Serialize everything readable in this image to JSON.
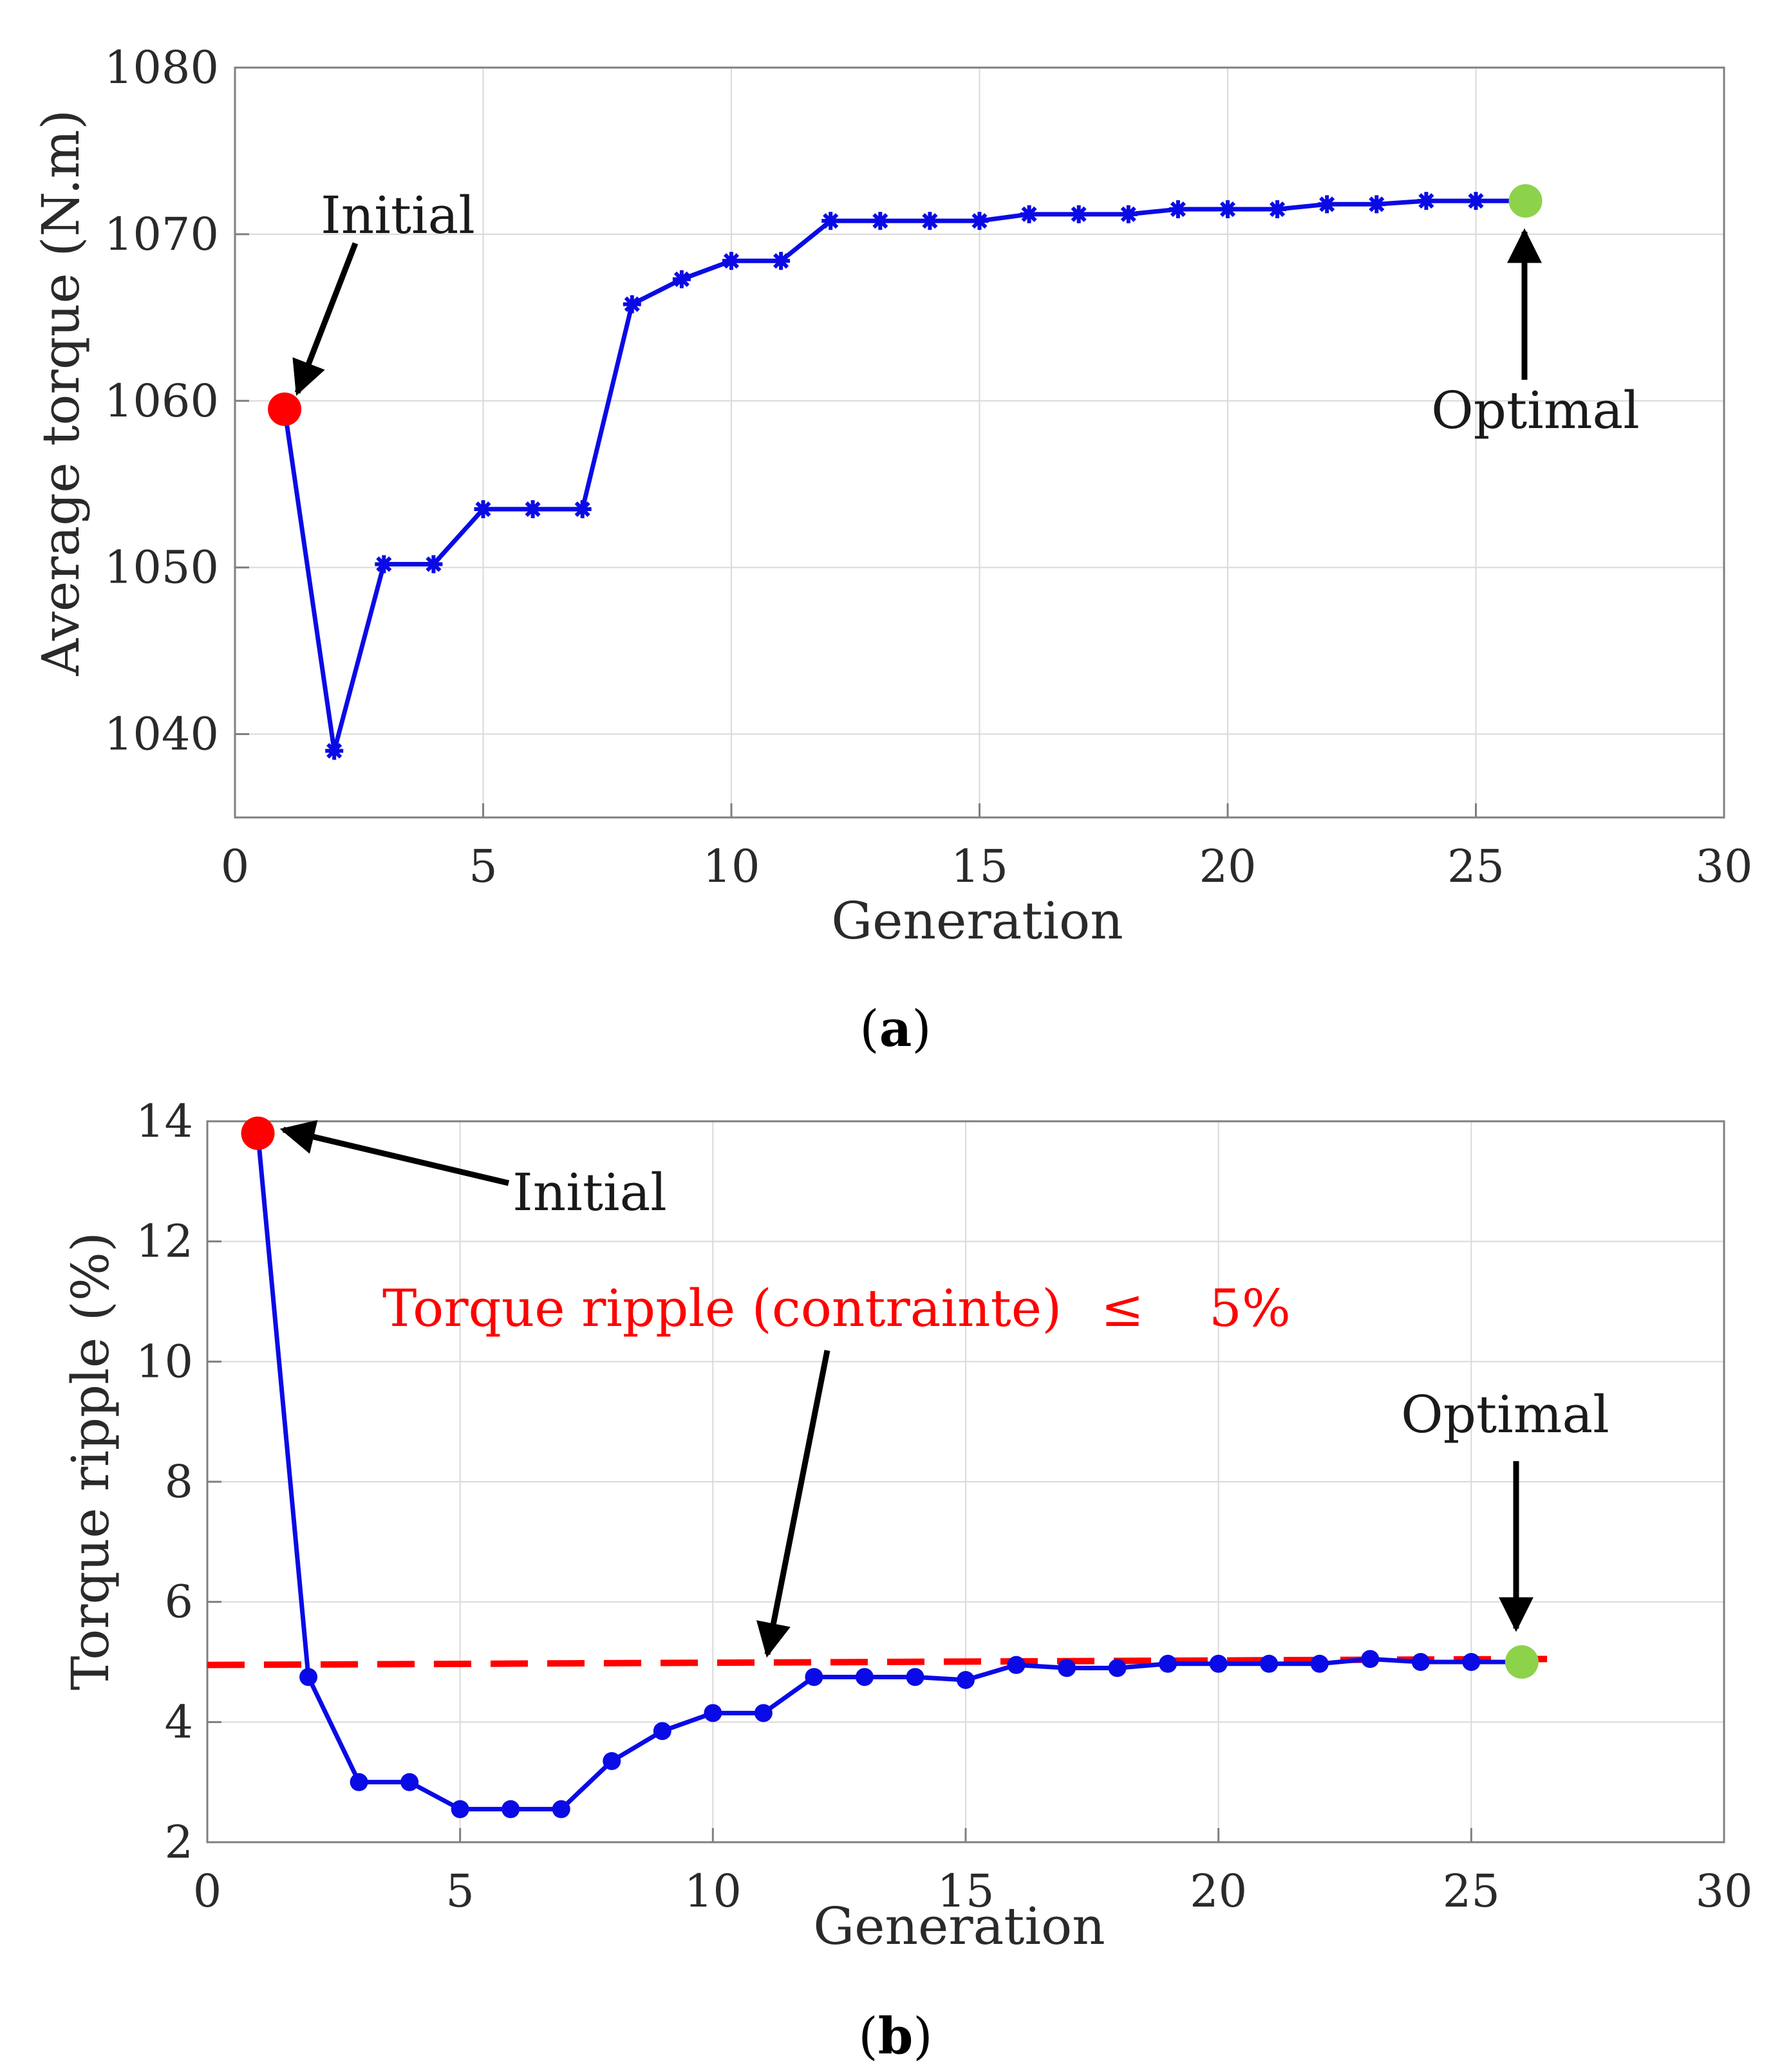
{
  "colors": {
    "series": "#0a0ae6",
    "initial_marker": "#ff0000",
    "optimal_marker": "#8cd24b",
    "constraint": "#ff0000",
    "annotation_arrow": "#000000",
    "grid": "#d9d9d9",
    "axes": "#7f7f7f"
  },
  "chart_data": [
    {
      "type": "line",
      "panel_label": "a",
      "caption_open": "(",
      "caption_close": ")",
      "xlabel": "Generation",
      "ylabel": "Average torque (N.m)",
      "xlim": [
        0,
        30
      ],
      "ylim": [
        1035,
        1080
      ],
      "xticks": [
        0,
        5,
        10,
        15,
        20,
        25,
        30
      ],
      "yticks": [
        1040,
        1050,
        1060,
        1070,
        1080
      ],
      "grid": true,
      "series": [
        {
          "name": "Average torque",
          "marker": "asterisk",
          "x": [
            1,
            2,
            3,
            4,
            5,
            6,
            7,
            8,
            9,
            10,
            11,
            12,
            13,
            14,
            15,
            16,
            17,
            18,
            19,
            20,
            21,
            22,
            23,
            24,
            25,
            26
          ],
          "values": [
            1059.5,
            1039,
            1050.2,
            1050.2,
            1053.5,
            1053.5,
            1053.5,
            1065.8,
            1067.3,
            1068.4,
            1068.4,
            1070.8,
            1070.8,
            1070.8,
            1070.8,
            1071.2,
            1071.2,
            1071.2,
            1071.5,
            1071.5,
            1071.5,
            1071.8,
            1071.8,
            1072,
            1072,
            1072
          ]
        }
      ],
      "annotations": {
        "initial": {
          "text": "Initial",
          "x": 1,
          "y": 1059.5
        },
        "optimal": {
          "text": "Optimal",
          "x": 26,
          "y": 1072
        }
      }
    },
    {
      "type": "line",
      "panel_label": "b",
      "caption_open": "(",
      "caption_close": ")",
      "xlabel": "Generation",
      "ylabel": "Torque ripple  (%)",
      "xlim": [
        0,
        30
      ],
      "ylim": [
        2,
        14
      ],
      "xticks": [
        0,
        5,
        10,
        15,
        20,
        25,
        30
      ],
      "yticks": [
        2,
        4,
        6,
        8,
        10,
        12,
        14
      ],
      "grid": true,
      "series": [
        {
          "name": "Torque ripple",
          "marker": "dot",
          "x": [
            1,
            2,
            3,
            4,
            5,
            6,
            7,
            8,
            9,
            10,
            11,
            12,
            13,
            14,
            15,
            16,
            17,
            18,
            19,
            20,
            21,
            22,
            23,
            24,
            25,
            26
          ],
          "values": [
            13.8,
            4.75,
            3.0,
            3.0,
            2.55,
            2.55,
            2.55,
            3.35,
            3.85,
            4.15,
            4.15,
            4.75,
            4.75,
            4.75,
            4.7,
            4.95,
            4.9,
            4.9,
            4.97,
            4.97,
            4.97,
            4.97,
            5.05,
            5.0,
            5.0,
            5.0
          ]
        }
      ],
      "constraint": {
        "label": "Torque ripple (contrainte)",
        "operator": "≤",
        "value_text": "5%",
        "from": {
          "x": 0,
          "y": 4.95
        },
        "to": {
          "x": 26.5,
          "y": 5.05
        }
      },
      "annotations": {
        "initial": {
          "text": "Initial",
          "x": 1,
          "y": 13.8
        },
        "optimal": {
          "text": "Optimal",
          "x": 26,
          "y": 5.0
        }
      }
    }
  ]
}
